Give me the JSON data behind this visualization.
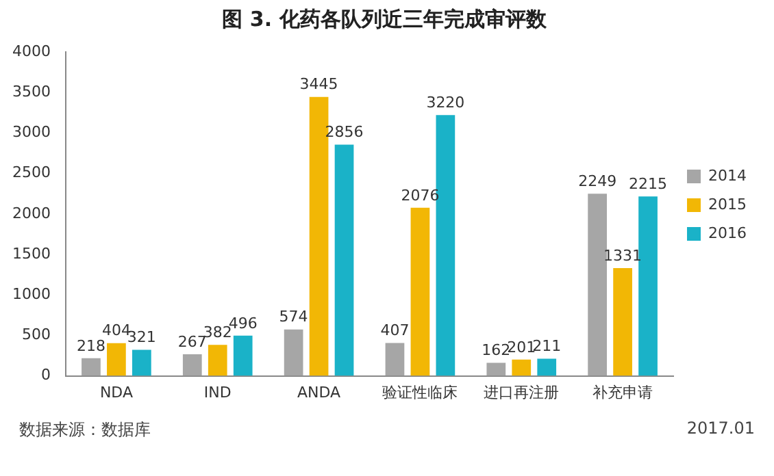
{
  "chart_data": {
    "type": "bar",
    "title": "图 3. 化药各队列近三年完成审评数",
    "categories": [
      "NDA",
      "IND",
      "ANDA",
      "验证性临床",
      "进口再注册",
      "补充申请"
    ],
    "series": [
      {
        "name": "2014",
        "color": "#a6a6a6",
        "values": [
          218,
          267,
          574,
          407,
          162,
          2249
        ]
      },
      {
        "name": "2015",
        "color": "#f2b705",
        "values": [
          404,
          382,
          3445,
          2076,
          201,
          1331
        ]
      },
      {
        "name": "2016",
        "color": "#1ab2c8",
        "values": [
          321,
          496,
          2856,
          3220,
          211,
          2215
        ]
      }
    ],
    "ylim": [
      0,
      4000
    ],
    "yticks": [
      0,
      500,
      1000,
      1500,
      2000,
      2500,
      3000,
      3500,
      4000
    ],
    "grid": false,
    "legend": "right",
    "data_labels": true,
    "annotations": [
      "数据来源：数据库",
      "2017.01"
    ]
  }
}
